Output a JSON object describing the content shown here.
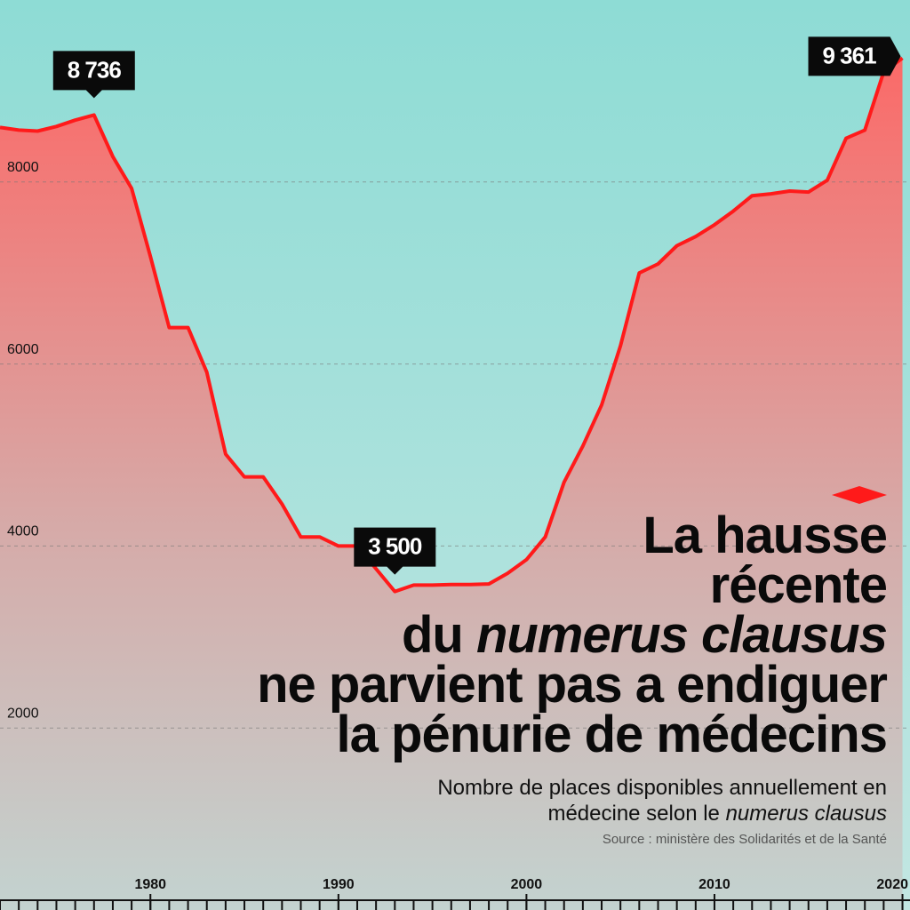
{
  "chart_data": {
    "type": "area-line",
    "title": [
      "La hausse",
      "récente",
      "du ",
      "numerus clausus",
      "ne parvient pas a endiguer",
      "la pénurie de médecins"
    ],
    "subtitle": [
      "Nombre de places disponibles annuellement en",
      "médecine selon le ",
      "numerus clausus"
    ],
    "source": "Source : ministère des Solidarités et de la Santé",
    "x": [
      1972,
      1973,
      1974,
      1975,
      1976,
      1977,
      1978,
      1979,
      1980,
      1981,
      1982,
      1983,
      1984,
      1985,
      1986,
      1987,
      1988,
      1989,
      1990,
      1991,
      1992,
      1993,
      1994,
      1995,
      1996,
      1997,
      1998,
      1999,
      2000,
      2001,
      2002,
      2003,
      2004,
      2005,
      2006,
      2007,
      2008,
      2009,
      2010,
      2011,
      2012,
      2013,
      2014,
      2015,
      2016,
      2017,
      2018,
      2019,
      2020
    ],
    "values": [
      8600,
      8570,
      8560,
      8610,
      8680,
      8736,
      8280,
      7930,
      7180,
      6400,
      6400,
      5910,
      5010,
      4760,
      4760,
      4460,
      4100,
      4100,
      4000,
      4000,
      3750,
      3500,
      3570,
      3570,
      3576,
      3576,
      3583,
      3700,
      3850,
      4100,
      4700,
      5100,
      5550,
      6200,
      7000,
      7100,
      7300,
      7400,
      7530,
      7680,
      7850,
      7870,
      7900,
      7890,
      8020,
      8480,
      8570,
      9210,
      9361
    ],
    "value_labels": [
      null,
      null,
      null,
      null,
      null,
      "8 736",
      null,
      null,
      null,
      null,
      null,
      null,
      null,
      null,
      null,
      null,
      null,
      null,
      null,
      null,
      null,
      "3 500",
      null,
      null,
      null,
      null,
      null,
      null,
      null,
      null,
      null,
      null,
      null,
      null,
      null,
      null,
      null,
      null,
      null,
      null,
      null,
      null,
      null,
      null,
      null,
      null,
      null,
      null,
      "9 361"
    ],
    "color": "#ff1a1a",
    "xlim": [
      1972,
      2020.4
    ],
    "xticks": [
      1980,
      1990,
      2000,
      2010,
      2020
    ],
    "ylim": [
      0,
      10000
    ],
    "yticks": [
      2000,
      4000,
      6000,
      8000
    ],
    "grid": true
  }
}
